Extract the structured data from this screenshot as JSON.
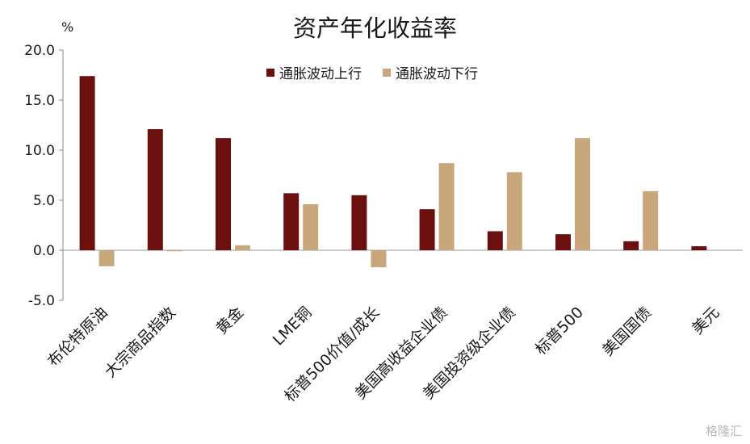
{
  "chart_data": {
    "type": "bar",
    "title": "资产年化收益率",
    "unit": "%",
    "categories": [
      "布伦特原油",
      "大宗商品指数",
      "黄金",
      "LME铜",
      "标普500价值/成长",
      "美国高收益企业债",
      "美国投资级企业债",
      "标普500",
      "美国国债",
      "美元"
    ],
    "series": [
      {
        "name": "通胀波动上行",
        "color": "#6b0f0f",
        "values": [
          17.4,
          12.1,
          11.2,
          5.7,
          5.5,
          4.1,
          1.9,
          1.6,
          0.9,
          0.4
        ]
      },
      {
        "name": "通胀波动下行",
        "color": "#c8a77d",
        "values": [
          -1.6,
          -0.1,
          0.5,
          4.6,
          -1.7,
          8.7,
          7.8,
          11.2,
          5.9,
          0.0
        ]
      }
    ],
    "yticks": [
      "20.0",
      "15.0",
      "10.0",
      "5.0",
      "0.0",
      "-5.0"
    ],
    "ylim": [
      -5,
      20
    ],
    "grid": false,
    "legend_position": "top"
  },
  "watermark": "格隆汇"
}
